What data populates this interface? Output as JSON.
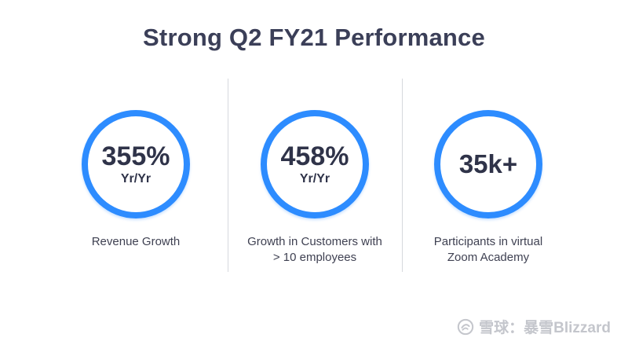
{
  "title": "Strong Q2 FY21 Performance",
  "metrics": [
    {
      "value": "355%",
      "unit": "Yr/Yr",
      "caption_line1": "Revenue Growth",
      "caption_line2": ""
    },
    {
      "value": "458%",
      "unit": "Yr/Yr",
      "caption_line1": "Growth in Customers with",
      "caption_line2": "> 10 employees"
    },
    {
      "value": "35k+",
      "unit": "",
      "caption_line1": "Participants in virtual",
      "caption_line2": "Zoom Academy"
    }
  ],
  "watermark": {
    "text": "雪球：暴雪Blizzard",
    "icon": "snowball-logo-icon"
  },
  "colors": {
    "ring": "#2d8cff",
    "title": "#3b3f58",
    "value_text": "#2f3349",
    "divider": "#d6d8dd"
  }
}
